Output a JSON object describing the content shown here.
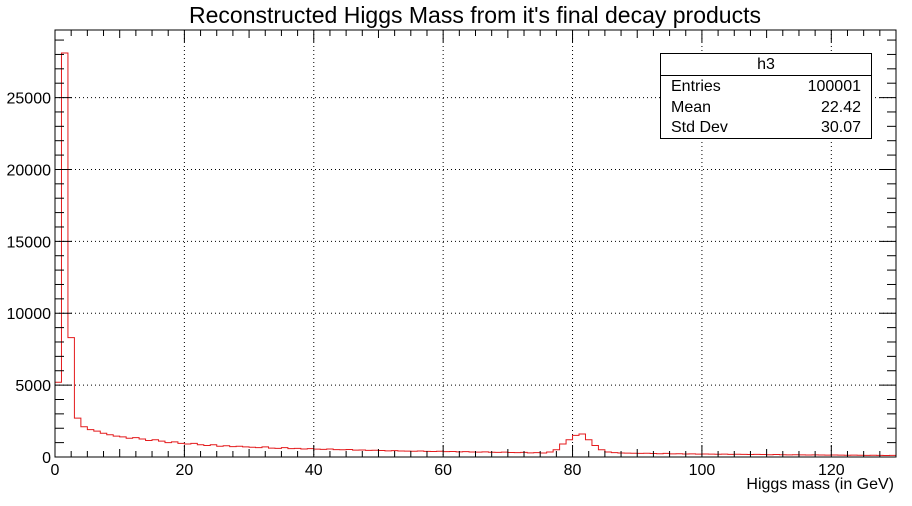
{
  "chart_data": {
    "type": "histogram",
    "title": "Reconstructed Higgs Mass from it's final decay products",
    "xlabel": "Higgs mass (in GeV)",
    "ylabel": "",
    "xlim": [
      0,
      130
    ],
    "ylim": [
      0,
      29700
    ],
    "bin_width": 1,
    "x_ticks": [
      0,
      20,
      40,
      60,
      80,
      100,
      120
    ],
    "y_ticks": [
      0,
      5000,
      10000,
      15000,
      20000,
      25000
    ],
    "grid": true,
    "line_color": "#e41a1c",
    "values": [
      5200,
      28100,
      8300,
      2700,
      2100,
      1900,
      1800,
      1650,
      1550,
      1450,
      1400,
      1300,
      1350,
      1250,
      1150,
      1200,
      1100,
      1000,
      1050,
      950,
      900,
      950,
      850,
      800,
      850,
      750,
      780,
      720,
      750,
      700,
      680,
      650,
      700,
      620,
      600,
      650,
      580,
      600,
      560,
      580,
      550,
      530,
      560,
      510,
      500,
      520,
      480,
      490,
      460,
      470,
      450,
      430,
      440,
      420,
      410,
      400,
      420,
      390,
      380,
      400,
      370,
      380,
      360,
      370,
      350,
      340,
      360,
      330,
      320,
      340,
      310,
      300,
      320,
      290,
      300,
      280,
      350,
      500,
      900,
      1200,
      1500,
      1600,
      1200,
      800,
      500,
      350,
      300,
      280,
      270,
      260,
      250,
      260,
      240,
      230,
      250,
      220,
      230,
      210,
      220,
      200,
      210,
      200,
      190,
      200,
      180,
      190,
      180,
      170,
      180,
      170,
      160,
      170,
      160,
      150,
      160,
      150,
      140,
      150,
      140,
      130,
      140,
      130,
      120,
      130,
      120,
      110,
      120,
      110,
      100,
      110
    ]
  },
  "stats": {
    "name": "h3",
    "rows": [
      {
        "label": "Entries",
        "value": "100001"
      },
      {
        "label": "Mean",
        "value": "22.42"
      },
      {
        "label": "Std Dev",
        "value": "30.07"
      }
    ]
  }
}
